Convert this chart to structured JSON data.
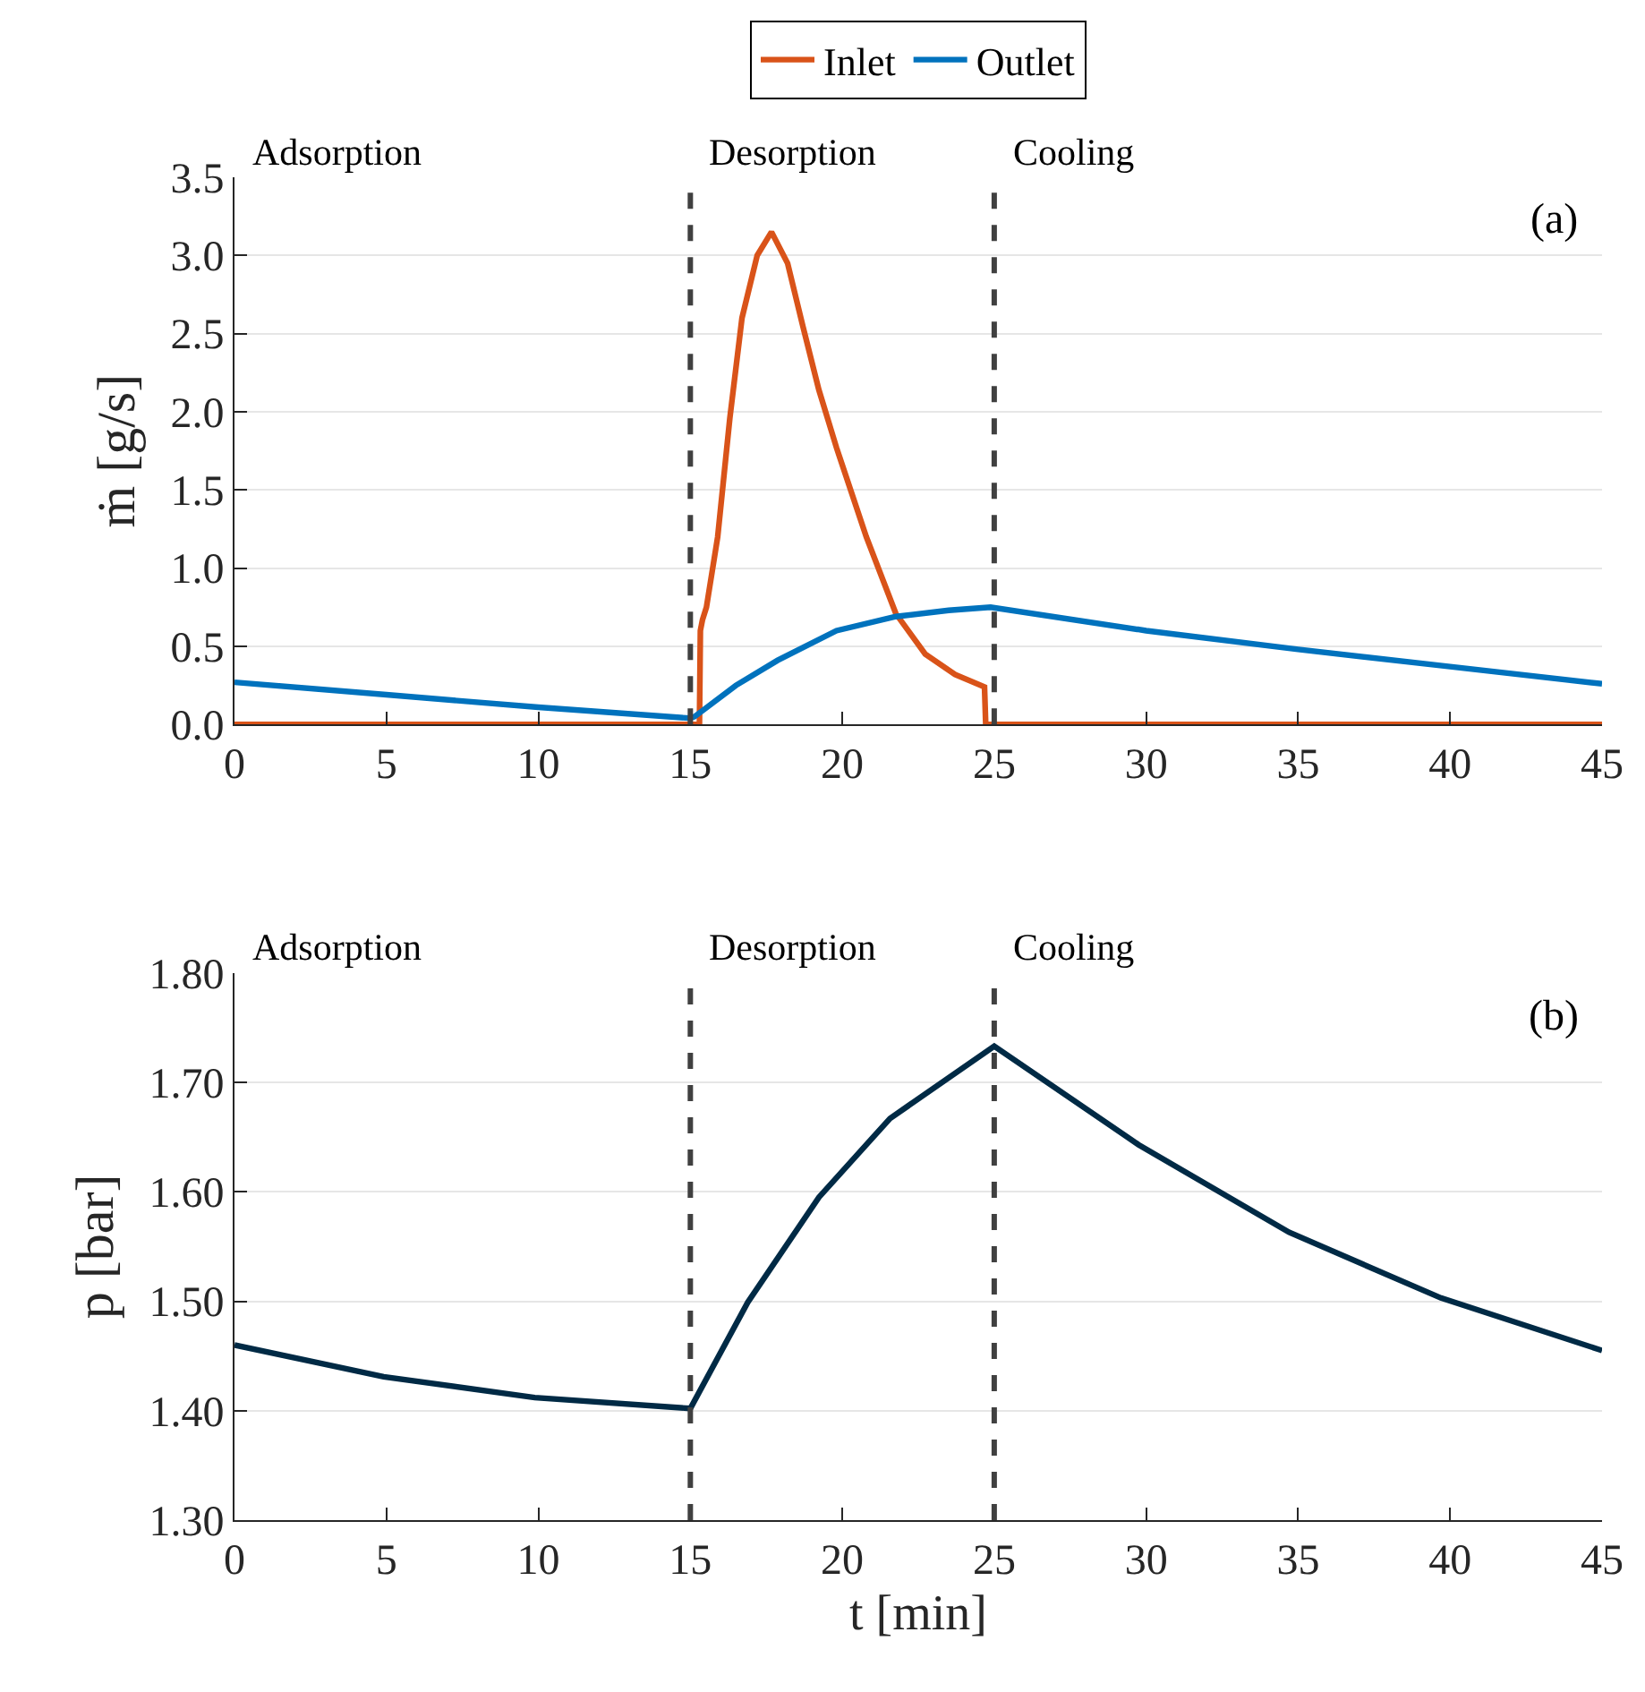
{
  "chart_data": [
    {
      "type": "line",
      "ylabel": "ṁ [g/s]",
      "legend": "top",
      "grid": "y",
      "annotations": [
        "Adsorption",
        "Desorption",
        "Cooling",
        "(a)"
      ],
      "xlim": [
        0,
        45
      ],
      "xticks": [
        0,
        5,
        10,
        15,
        20,
        25,
        30,
        35,
        40,
        45
      ],
      "ylim": [
        0,
        3.5
      ],
      "yticks": [
        {
          "value": 0,
          "label": "0.0"
        },
        {
          "value": 0.5,
          "label": "0.5"
        },
        {
          "value": 1,
          "label": "1.0"
        },
        {
          "value": 1.5,
          "label": "1.5"
        },
        {
          "value": 2,
          "label": "2.0"
        },
        {
          "value": 2.5,
          "label": "2.5"
        },
        {
          "value": 3,
          "label": "3.0"
        },
        {
          "value": 3.5,
          "label": "3.5"
        }
      ],
      "ref_lines": [
        {
          "axis": "x",
          "value": 15,
          "color": "#404040",
          "line_style": "dashed"
        },
        {
          "axis": "x",
          "value": 25,
          "color": "#404040",
          "line_style": "dashed"
        }
      ],
      "series": [
        {
          "name": "Inlet",
          "color": "#d95319",
          "x": [
            0,
            15.3,
            15.33,
            15.4,
            15.53,
            15.9,
            16.3,
            16.7,
            17.2,
            17.67,
            18.2,
            18.7,
            19.23,
            19.81,
            20.79,
            21.76,
            22.73,
            23.71,
            24.68,
            24.72,
            30,
            45
          ],
          "values": [
            0,
            0,
            0.6,
            0.67,
            0.75,
            1.2,
            1.96,
            2.6,
            3.0,
            3.15,
            2.95,
            2.55,
            2.14,
            1.77,
            1.2,
            0.71,
            0.45,
            0.32,
            0.24,
            0,
            0,
            0
          ]
        },
        {
          "name": "Outlet",
          "color": "#0072bd",
          "x": [
            0,
            5,
            10,
            15,
            15.14,
            16.5,
            17.87,
            19.81,
            21.76,
            23.5,
            24.88,
            30,
            35,
            40,
            45
          ],
          "values": [
            0.27,
            0.19,
            0.11,
            0.04,
            0.05,
            0.25,
            0.41,
            0.6,
            0.69,
            0.73,
            0.75,
            0.6,
            0.48,
            0.37,
            0.26
          ]
        }
      ]
    },
    {
      "type": "line",
      "xlabel": "t [min]",
      "ylabel": "p [bar]",
      "grid": "y",
      "annotations": [
        "Adsorption",
        "Desorption",
        "Cooling",
        "(b)"
      ],
      "xlim": [
        0,
        45
      ],
      "xticks": [
        0,
        5,
        10,
        15,
        20,
        25,
        30,
        35,
        40,
        45
      ],
      "ylim": [
        1.3,
        1.8
      ],
      "yticks": [
        {
          "value": 1.3,
          "label": "1.30"
        },
        {
          "value": 1.4,
          "label": "1.40"
        },
        {
          "value": 1.5,
          "label": "1.50"
        },
        {
          "value": 1.6,
          "label": "1.60"
        },
        {
          "value": 1.7,
          "label": "1.70"
        },
        {
          "value": 1.8,
          "label": "1.80"
        }
      ],
      "ref_lines": [
        {
          "axis": "x",
          "value": 15,
          "color": "#404040",
          "line_style": "dashed"
        },
        {
          "axis": "x",
          "value": 25,
          "color": "#404040",
          "line_style": "dashed"
        }
      ],
      "series": [
        {
          "color": "#002a45",
          "x": [
            0,
            4.91,
            9.88,
            15,
            16.89,
            19.23,
            21.57,
            25,
            29.75,
            34.7,
            39.7,
            45
          ],
          "values": [
            1.46,
            1.431,
            1.412,
            1.402,
            1.499,
            1.595,
            1.667,
            1.733,
            1.643,
            1.563,
            1.503,
            1.455
          ]
        }
      ]
    }
  ]
}
